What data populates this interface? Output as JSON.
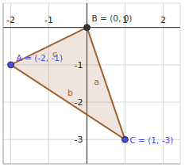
{
  "chart_data": {
    "type": "scatter",
    "points": [
      {
        "name": "A",
        "x": -2,
        "y": -1,
        "label": "A = (-2, -1)",
        "color": "#4a4ae0"
      },
      {
        "name": "B",
        "x": 0,
        "y": 0,
        "label": "B = (0, 0)",
        "color": "#333333"
      },
      {
        "name": "C",
        "x": 1,
        "y": -3,
        "label": "C = (1, -3)",
        "color": "#4a4ae0"
      }
    ],
    "segments": [
      {
        "label": "a",
        "from": "B",
        "to": "C"
      },
      {
        "label": "b",
        "from": "A",
        "to": "C"
      },
      {
        "label": "c",
        "from": "A",
        "to": "B"
      }
    ],
    "color": "#a0602f",
    "xlim": [
      -2.2,
      2.45
    ],
    "ylim": [
      -3.65,
      0.65
    ],
    "xticks": [
      -2,
      -1,
      1,
      2
    ],
    "yticks": [
      -3,
      -2,
      -1
    ],
    "grid": true
  }
}
